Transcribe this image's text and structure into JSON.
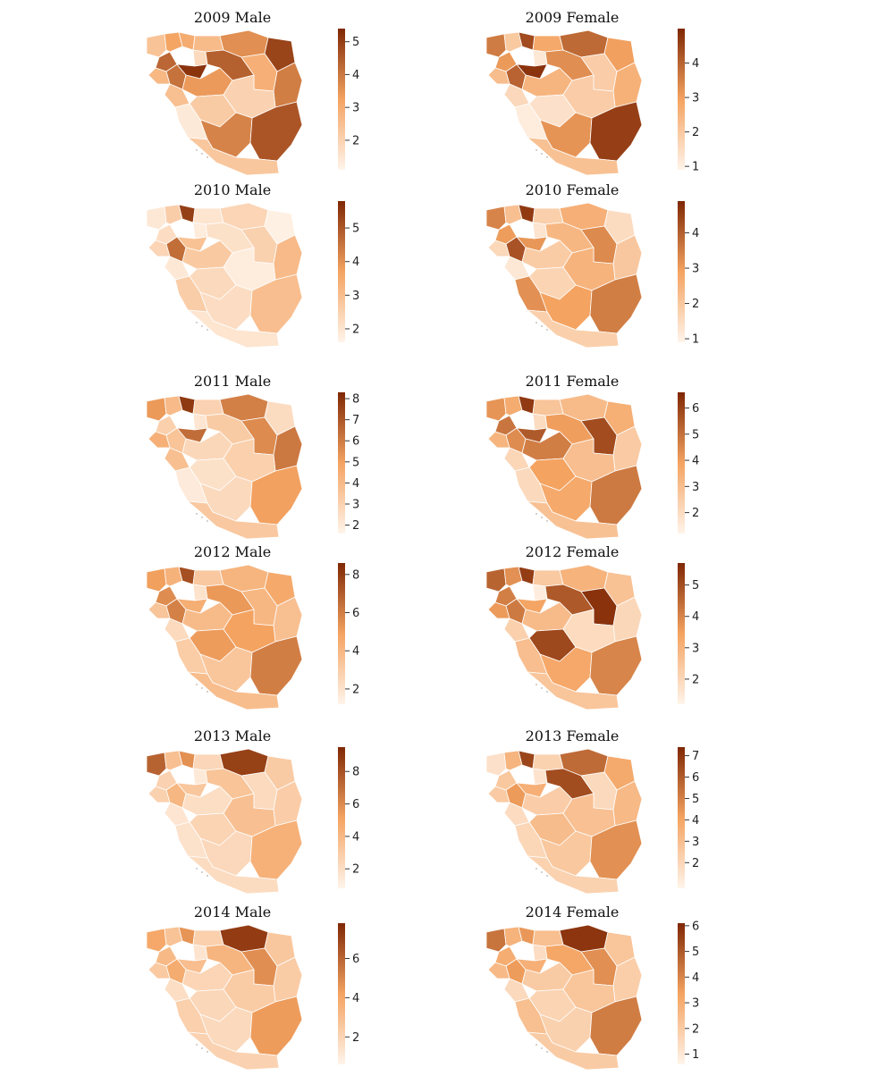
{
  "colors": {
    "low": "#fff4ea",
    "mid": "#f4a361",
    "high": "#7f2704",
    "border": "#ffffff",
    "outline": "#9a8a80"
  },
  "panels": [
    {
      "title": "2009 Male",
      "scale": {
        "min": 1.1,
        "max": 5.4,
        "ticks": [
          2,
          3,
          4,
          5
        ]
      },
      "regions": [
        2.4,
        3.2,
        3.0,
        4.3,
        1.8,
        2.6,
        3.6,
        4.9,
        4.4,
        2.9,
        3.9,
        2.7,
        4.1,
        5.2,
        3.4,
        2.5,
        2.2,
        1.4,
        2.0,
        3.8,
        4.6,
        2.3
      ]
    },
    {
      "title": "2009 Female",
      "scale": {
        "min": 0.9,
        "max": 5.0,
        "ticks": [
          1,
          2,
          3,
          4
        ]
      },
      "regions": [
        3.6,
        2.0,
        4.4,
        3.1,
        1.2,
        2.8,
        3.9,
        3.0,
        3.3,
        1.9,
        2.6,
        2.3,
        4.0,
        4.8,
        2.5,
        1.6,
        1.4,
        1.1,
        1.9,
        3.2,
        4.6,
        2.2
      ]
    },
    {
      "title": "2010 Male",
      "scale": {
        "min": 1.6,
        "max": 5.8,
        "ticks": [
          2,
          3,
          4,
          5
        ]
      },
      "regions": [
        1.9,
        2.6,
        5.4,
        2.2,
        1.8,
        2.0,
        2.4,
        1.7,
        2.1,
        2.5,
        3.1,
        2.4,
        4.6,
        2.9,
        2.7,
        1.9,
        2.3,
        2.6,
        1.8,
        2.2,
        3.0,
        2.0
      ]
    },
    {
      "title": "2010 Female",
      "scale": {
        "min": 0.9,
        "max": 4.9,
        "ticks": [
          1,
          2,
          3,
          4
        ]
      },
      "regions": [
        3.4,
        2.2,
        4.6,
        3.0,
        1.3,
        1.8,
        2.6,
        1.5,
        2.4,
        3.3,
        2.0,
        1.6,
        4.2,
        3.1,
        1.9,
        1.2,
        1.7,
        3.2,
        2.5,
        2.9,
        3.5,
        1.8
      ]
    },
    {
      "title": "2011 Male",
      "scale": {
        "min": 1.6,
        "max": 8.3,
        "ticks": [
          2,
          3,
          4,
          5,
          6,
          7,
          8
        ]
      },
      "regions": [
        5.2,
        4.0,
        7.8,
        3.1,
        2.2,
        3.0,
        5.9,
        2.6,
        3.3,
        5.6,
        6.1,
        4.4,
        3.6,
        6.4,
        2.8,
        3.8,
        2.4,
        2.0,
        3.1,
        2.7,
        5.0,
        3.4
      ]
    },
    {
      "title": "2011 Female",
      "scale": {
        "min": 1.2,
        "max": 6.6,
        "ticks": [
          2,
          3,
          4,
          5,
          6
        ]
      },
      "regions": [
        4.2,
        3.6,
        6.2,
        4.9,
        2.0,
        2.8,
        3.1,
        3.5,
        4.0,
        5.8,
        2.6,
        3.3,
        4.4,
        5.5,
        4.7,
        2.2,
        3.9,
        2.1,
        3.0,
        3.7,
        4.8,
        2.9
      ]
    },
    {
      "title": "2012 Male",
      "scale": {
        "min": 1.2,
        "max": 8.6,
        "ticks": [
          2,
          4,
          6,
          8
        ]
      },
      "regions": [
        5.0,
        4.2,
        7.4,
        5.6,
        2.0,
        3.2,
        4.1,
        4.6,
        5.2,
        4.0,
        3.6,
        3.4,
        5.9,
        4.4,
        3.8,
        2.4,
        5.1,
        3.0,
        4.9,
        3.3,
        6.0,
        3.7
      ]
    },
    {
      "title": "2012 Female",
      "scale": {
        "min": 1.2,
        "max": 5.7,
        "ticks": [
          2,
          3,
          4,
          5
        ]
      },
      "regions": [
        4.6,
        3.8,
        5.3,
        4.1,
        1.4,
        2.4,
        3.0,
        2.6,
        4.8,
        5.5,
        2.0,
        3.6,
        4.2,
        3.4,
        2.8,
        2.2,
        5.1,
        2.7,
        1.9,
        3.3,
        4.0,
        2.5
      ]
    },
    {
      "title": "2013 Male",
      "scale": {
        "min": 0.8,
        "max": 9.5,
        "ticks": [
          2,
          4,
          6,
          8
        ]
      },
      "regions": [
        7.4,
        3.6,
        5.8,
        2.6,
        1.4,
        2.4,
        8.6,
        3.0,
        3.4,
        2.2,
        2.9,
        2.7,
        4.1,
        3.2,
        2.0,
        1.6,
        2.5,
        1.8,
        3.6,
        2.3,
        4.4,
        2.1
      ]
    },
    {
      "title": "2013 Female",
      "scale": {
        "min": 0.8,
        "max": 7.4,
        "ticks": [
          2,
          3,
          4,
          5,
          6,
          7
        ]
      },
      "regions": [
        1.6,
        3.4,
        6.6,
        2.6,
        1.5,
        2.2,
        5.6,
        3.8,
        6.4,
        1.9,
        3.2,
        2.5,
        4.3,
        3.6,
        2.4,
        1.8,
        3.1,
        2.0,
        2.9,
        2.6,
        4.6,
        2.2
      ]
    },
    {
      "title": "2014 Male",
      "scale": {
        "min": 0.6,
        "max": 7.8,
        "ticks": [
          2,
          4,
          6
        ]
      },
      "regions": [
        4.0,
        2.8,
        4.6,
        3.2,
        1.3,
        2.2,
        7.2,
        2.6,
        3.4,
        4.8,
        2.4,
        2.5,
        3.8,
        3.0,
        2.0,
        1.6,
        1.9,
        2.2,
        2.4,
        1.8,
        4.4,
        2.1
      ]
    },
    {
      "title": "2014 Female",
      "scale": {
        "min": 0.6,
        "max": 6.1,
        "ticks": [
          1,
          2,
          3,
          4,
          5,
          6
        ]
      },
      "regions": [
        4.4,
        2.8,
        3.6,
        3.0,
        1.4,
        2.4,
        5.8,
        2.2,
        3.2,
        3.8,
        1.9,
        2.6,
        3.5,
        2.9,
        2.0,
        1.5,
        1.7,
        2.4,
        2.2,
        1.8,
        4.2,
        2.0
      ]
    }
  ]
}
